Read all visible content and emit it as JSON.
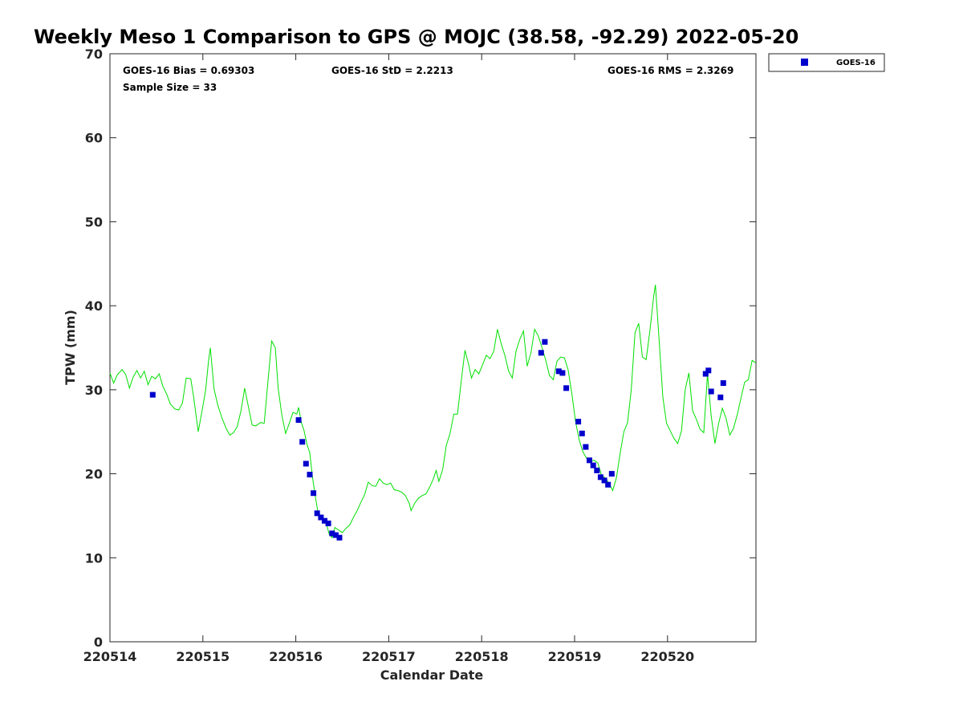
{
  "chart_data": {
    "type": "scatter",
    "title": "Weekly Meso 1 Comparison to GPS @ MOJC (38.58, -92.29) 2022-05-20",
    "xlabel": "Calendar Date",
    "ylabel": "TPW (mm)",
    "xlim": [
      0,
      6.95
    ],
    "ylim": [
      0,
      70
    ],
    "x_ticks": [
      {
        "value": 0,
        "label": "220514"
      },
      {
        "value": 1,
        "label": "220515"
      },
      {
        "value": 2,
        "label": "220516"
      },
      {
        "value": 3,
        "label": "220517"
      },
      {
        "value": 4,
        "label": "220518"
      },
      {
        "value": 5,
        "label": "220519"
      },
      {
        "value": 6,
        "label": "220520"
      }
    ],
    "y_ticks": [
      {
        "value": 0,
        "label": "0"
      },
      {
        "value": 10,
        "label": "10"
      },
      {
        "value": 20,
        "label": "20"
      },
      {
        "value": 30,
        "label": "30"
      },
      {
        "value": 40,
        "label": "40"
      },
      {
        "value": 50,
        "label": "50"
      },
      {
        "value": 60,
        "label": "60"
      },
      {
        "value": 70,
        "label": "70"
      }
    ],
    "grid": false,
    "legend_position": "top-right-outside",
    "stats": {
      "bias": "GOES-16 Bias = 0.69303",
      "std": "GOES-16 StD = 2.2213",
      "rms": "GOES-16 RMS = 2.3269",
      "sample": "Sample Size = 33"
    },
    "series": [
      {
        "name": "GPS",
        "kind": "line",
        "color": "#00e000",
        "show_in_legend": false,
        "points": [
          [
            0.0,
            32.0
          ],
          [
            0.04,
            30.8
          ],
          [
            0.08,
            31.8
          ],
          [
            0.13,
            32.4
          ],
          [
            0.17,
            31.8
          ],
          [
            0.21,
            30.2
          ],
          [
            0.25,
            31.5
          ],
          [
            0.29,
            32.3
          ],
          [
            0.33,
            31.4
          ],
          [
            0.37,
            32.2
          ],
          [
            0.41,
            30.6
          ],
          [
            0.45,
            31.6
          ],
          [
            0.49,
            31.3
          ],
          [
            0.53,
            31.9
          ],
          [
            0.57,
            30.4
          ],
          [
            0.61,
            29.5
          ],
          [
            0.65,
            28.3
          ],
          [
            0.7,
            27.7
          ],
          [
            0.74,
            27.6
          ],
          [
            0.78,
            28.4
          ],
          [
            0.82,
            31.4
          ],
          [
            0.87,
            31.3
          ],
          [
            0.9,
            29.2
          ],
          [
            0.95,
            25.0
          ],
          [
            0.99,
            27.4
          ],
          [
            1.03,
            30.0
          ],
          [
            1.06,
            33.3
          ],
          [
            1.08,
            35.0
          ],
          [
            1.12,
            30.1
          ],
          [
            1.16,
            28.2
          ],
          [
            1.21,
            26.5
          ],
          [
            1.25,
            25.4
          ],
          [
            1.29,
            24.6
          ],
          [
            1.33,
            24.9
          ],
          [
            1.37,
            25.6
          ],
          [
            1.41,
            27.5
          ],
          [
            1.45,
            30.2
          ],
          [
            1.49,
            28.0
          ],
          [
            1.53,
            25.8
          ],
          [
            1.57,
            25.7
          ],
          [
            1.62,
            26.1
          ],
          [
            1.66,
            26.0
          ],
          [
            1.7,
            31.0
          ],
          [
            1.74,
            35.8
          ],
          [
            1.78,
            35.0
          ],
          [
            1.81,
            30.2
          ],
          [
            1.85,
            27.0
          ],
          [
            1.89,
            24.8
          ],
          [
            1.93,
            26.0
          ],
          [
            1.97,
            27.3
          ],
          [
            2.01,
            27.1
          ],
          [
            2.03,
            27.9
          ],
          [
            2.06,
            26.1
          ],
          [
            2.09,
            25.1
          ],
          [
            2.12,
            23.5
          ],
          [
            2.15,
            22.5
          ],
          [
            2.18,
            19.6
          ],
          [
            2.21,
            17.3
          ],
          [
            2.24,
            15.3
          ],
          [
            2.27,
            14.7
          ],
          [
            2.3,
            14.4
          ],
          [
            2.33,
            14.0
          ],
          [
            2.36,
            12.8
          ],
          [
            2.39,
            12.4
          ],
          [
            2.42,
            13.6
          ],
          [
            2.46,
            13.3
          ],
          [
            2.5,
            13.0
          ],
          [
            2.54,
            13.5
          ],
          [
            2.58,
            13.9
          ],
          [
            2.62,
            14.8
          ],
          [
            2.66,
            15.6
          ],
          [
            2.7,
            16.6
          ],
          [
            2.74,
            17.5
          ],
          [
            2.78,
            19.0
          ],
          [
            2.82,
            18.6
          ],
          [
            2.86,
            18.5
          ],
          [
            2.9,
            19.4
          ],
          [
            2.94,
            18.9
          ],
          [
            2.98,
            18.7
          ],
          [
            3.02,
            18.9
          ],
          [
            3.06,
            18.1
          ],
          [
            3.1,
            18.0
          ],
          [
            3.14,
            17.8
          ],
          [
            3.18,
            17.4
          ],
          [
            3.22,
            16.5
          ],
          [
            3.24,
            15.6
          ],
          [
            3.28,
            16.5
          ],
          [
            3.32,
            17.1
          ],
          [
            3.36,
            17.4
          ],
          [
            3.4,
            17.6
          ],
          [
            3.44,
            18.4
          ],
          [
            3.48,
            19.4
          ],
          [
            3.51,
            20.4
          ],
          [
            3.54,
            19.1
          ],
          [
            3.58,
            20.5
          ],
          [
            3.62,
            23.4
          ],
          [
            3.66,
            24.8
          ],
          [
            3.7,
            27.1
          ],
          [
            3.74,
            27.1
          ],
          [
            3.78,
            31.0
          ],
          [
            3.82,
            34.7
          ],
          [
            3.86,
            33.0
          ],
          [
            3.89,
            31.4
          ],
          [
            3.93,
            32.4
          ],
          [
            3.97,
            31.9
          ],
          [
            4.01,
            33.0
          ],
          [
            4.05,
            34.1
          ],
          [
            4.09,
            33.7
          ],
          [
            4.13,
            34.6
          ],
          [
            4.17,
            37.2
          ],
          [
            4.21,
            35.5
          ],
          [
            4.25,
            34.1
          ],
          [
            4.29,
            32.2
          ],
          [
            4.33,
            31.4
          ],
          [
            4.37,
            34.6
          ],
          [
            4.41,
            36.0
          ],
          [
            4.45,
            37.0
          ],
          [
            4.49,
            32.8
          ],
          [
            4.53,
            34.4
          ],
          [
            4.57,
            37.2
          ],
          [
            4.61,
            36.4
          ],
          [
            4.65,
            35.0
          ],
          [
            4.69,
            33.5
          ],
          [
            4.73,
            31.7
          ],
          [
            4.77,
            31.2
          ],
          [
            4.81,
            33.4
          ],
          [
            4.85,
            33.9
          ],
          [
            4.89,
            33.8
          ],
          [
            4.93,
            32.4
          ],
          [
            4.97,
            29.6
          ],
          [
            5.01,
            26.2
          ],
          [
            5.05,
            24.0
          ],
          [
            5.09,
            22.6
          ],
          [
            5.13,
            21.8
          ],
          [
            5.17,
            21.5
          ],
          [
            5.21,
            21.6
          ],
          [
            5.25,
            21.3
          ],
          [
            5.29,
            19.8
          ],
          [
            5.33,
            19.5
          ],
          [
            5.37,
            18.9
          ],
          [
            5.41,
            18.0
          ],
          [
            5.45,
            19.5
          ],
          [
            5.49,
            22.4
          ],
          [
            5.53,
            25.0
          ],
          [
            5.57,
            26.1
          ],
          [
            5.61,
            30.0
          ],
          [
            5.65,
            36.8
          ],
          [
            5.69,
            37.9
          ],
          [
            5.73,
            33.9
          ],
          [
            5.77,
            33.6
          ],
          [
            5.81,
            37.0
          ],
          [
            5.85,
            41.0
          ],
          [
            5.87,
            42.5
          ],
          [
            5.91,
            35.8
          ],
          [
            5.95,
            29.1
          ],
          [
            5.99,
            26.0
          ],
          [
            6.03,
            25.1
          ],
          [
            6.07,
            24.2
          ],
          [
            6.11,
            23.6
          ],
          [
            6.15,
            25.1
          ],
          [
            6.19,
            30.0
          ],
          [
            6.23,
            32.0
          ],
          [
            6.27,
            27.5
          ],
          [
            6.31,
            26.5
          ],
          [
            6.35,
            25.3
          ],
          [
            6.39,
            24.9
          ],
          [
            6.43,
            31.9
          ],
          [
            6.47,
            26.9
          ],
          [
            6.51,
            23.6
          ],
          [
            6.55,
            26.0
          ],
          [
            6.59,
            27.8
          ],
          [
            6.63,
            26.6
          ],
          [
            6.67,
            24.6
          ],
          [
            6.71,
            25.4
          ],
          [
            6.75,
            27.0
          ],
          [
            6.79,
            29.0
          ],
          [
            6.83,
            30.9
          ],
          [
            6.87,
            31.2
          ],
          [
            6.91,
            33.5
          ],
          [
            6.95,
            33.2
          ]
        ]
      },
      {
        "name": "GOES-16",
        "kind": "scatter",
        "color": "#0000cc",
        "show_in_legend": true,
        "points": [
          [
            0.46,
            29.4
          ],
          [
            2.03,
            26.4
          ],
          [
            2.07,
            23.8
          ],
          [
            2.11,
            21.2
          ],
          [
            2.15,
            19.9
          ],
          [
            2.19,
            17.7
          ],
          [
            2.23,
            15.3
          ],
          [
            2.27,
            14.8
          ],
          [
            2.31,
            14.4
          ],
          [
            2.35,
            14.1
          ],
          [
            2.39,
            12.9
          ],
          [
            2.43,
            12.7
          ],
          [
            2.47,
            12.4
          ],
          [
            4.64,
            34.4
          ],
          [
            4.68,
            35.7
          ],
          [
            4.83,
            32.2
          ],
          [
            4.87,
            32.0
          ],
          [
            4.91,
            30.2
          ],
          [
            5.04,
            26.2
          ],
          [
            5.08,
            24.8
          ],
          [
            5.12,
            23.2
          ],
          [
            5.16,
            21.6
          ],
          [
            5.2,
            21.0
          ],
          [
            5.24,
            20.4
          ],
          [
            5.28,
            19.6
          ],
          [
            5.32,
            19.2
          ],
          [
            5.36,
            18.7
          ],
          [
            5.4,
            20.0
          ],
          [
            6.41,
            31.9
          ],
          [
            6.44,
            32.3
          ],
          [
            6.47,
            29.8
          ],
          [
            6.57,
            29.1
          ],
          [
            6.6,
            30.8
          ]
        ]
      }
    ]
  }
}
